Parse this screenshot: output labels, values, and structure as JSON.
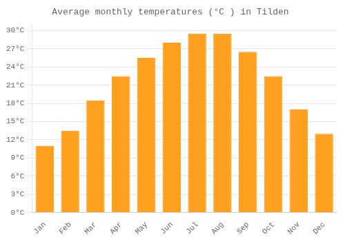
{
  "chart_data": {
    "type": "bar",
    "title": "Average monthly temperatures (°C ) in Tilden",
    "categories": [
      "Jan",
      "Feb",
      "Mar",
      "Apr",
      "May",
      "Jun",
      "Jul",
      "Aug",
      "Sep",
      "Oct",
      "Nov",
      "Dec"
    ],
    "values": [
      11.0,
      13.5,
      18.5,
      22.5,
      25.5,
      28.0,
      29.5,
      29.5,
      26.5,
      22.5,
      17.0,
      13.0
    ],
    "color": "#FFA020",
    "ylim": [
      0,
      31
    ],
    "yticks": [
      {
        "value": 0,
        "label": "0°C"
      },
      {
        "value": 3,
        "label": "3°C"
      },
      {
        "value": 6,
        "label": "6°C"
      },
      {
        "value": 9,
        "label": "9°C"
      },
      {
        "value": 12,
        "label": "12°C"
      },
      {
        "value": 15,
        "label": "15°C"
      },
      {
        "value": 18,
        "label": "18°C"
      },
      {
        "value": 21,
        "label": "21°C"
      },
      {
        "value": 24,
        "label": "24°C"
      },
      {
        "value": 27,
        "label": "27°C"
      },
      {
        "value": 30,
        "label": "30°C"
      }
    ],
    "grid": true
  }
}
